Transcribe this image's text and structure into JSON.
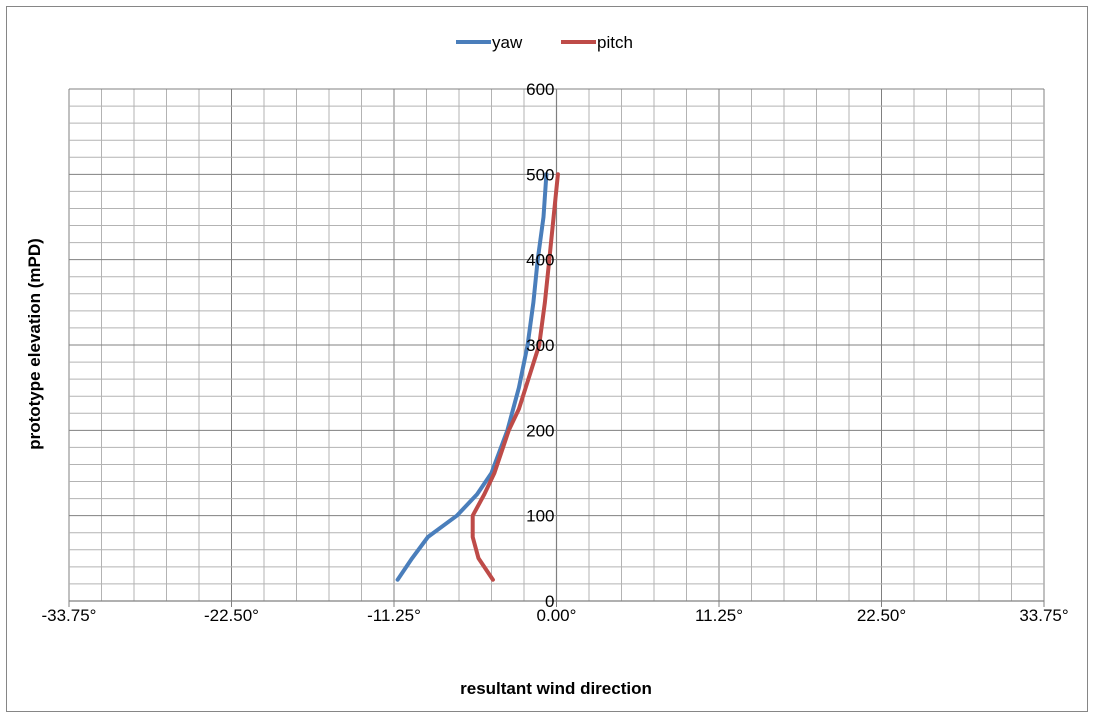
{
  "chart_data": {
    "type": "line",
    "title": "",
    "xlabel": "resultant wind direction",
    "ylabel": "prototype elevation (mPD)",
    "xlim": [
      -33.75,
      33.75
    ],
    "ylim": [
      0,
      600
    ],
    "x_ticks": [
      {
        "value": -33.75,
        "label": "-33.75°"
      },
      {
        "value": -22.5,
        "label": "-22.50°"
      },
      {
        "value": -11.25,
        "label": "-11.25°"
      },
      {
        "value": 0,
        "label": "0.00°"
      },
      {
        "value": 11.25,
        "label": "11.25°"
      },
      {
        "value": 22.5,
        "label": "22.50°"
      },
      {
        "value": 33.75,
        "label": "33.75°"
      }
    ],
    "y_ticks": [
      {
        "value": 0,
        "label": "0"
      },
      {
        "value": 100,
        "label": "100"
      },
      {
        "value": 200,
        "label": "200"
      },
      {
        "value": 300,
        "label": "300"
      },
      {
        "value": 400,
        "label": "400"
      },
      {
        "value": 500,
        "label": "500"
      },
      {
        "value": 600,
        "label": "600"
      }
    ],
    "grid": true,
    "legend_position": "top",
    "series": [
      {
        "name": "yaw",
        "color": "#4a7ebb",
        "points": [
          {
            "x": -11.0,
            "y": 25
          },
          {
            "x": -10.0,
            "y": 50
          },
          {
            "x": -8.9,
            "y": 75
          },
          {
            "x": -6.9,
            "y": 100
          },
          {
            "x": -5.5,
            "y": 125
          },
          {
            "x": -4.5,
            "y": 150
          },
          {
            "x": -3.4,
            "y": 200
          },
          {
            "x": -2.6,
            "y": 250
          },
          {
            "x": -2.0,
            "y": 300
          },
          {
            "x": -1.6,
            "y": 350
          },
          {
            "x": -1.3,
            "y": 400
          },
          {
            "x": -0.9,
            "y": 450
          },
          {
            "x": -0.7,
            "y": 500
          }
        ]
      },
      {
        "name": "pitch",
        "color": "#be4b48",
        "points": [
          {
            "x": -4.4,
            "y": 25
          },
          {
            "x": -5.4,
            "y": 50
          },
          {
            "x": -5.8,
            "y": 75
          },
          {
            "x": -5.8,
            "y": 100
          },
          {
            "x": -5.0,
            "y": 125
          },
          {
            "x": -4.3,
            "y": 150
          },
          {
            "x": -3.3,
            "y": 200
          },
          {
            "x": -2.6,
            "y": 225
          },
          {
            "x": -1.2,
            "y": 300
          },
          {
            "x": -0.8,
            "y": 350
          },
          {
            "x": -0.5,
            "y": 400
          },
          {
            "x": -0.2,
            "y": 450
          },
          {
            "x": 0.1,
            "y": 500
          }
        ]
      }
    ]
  }
}
